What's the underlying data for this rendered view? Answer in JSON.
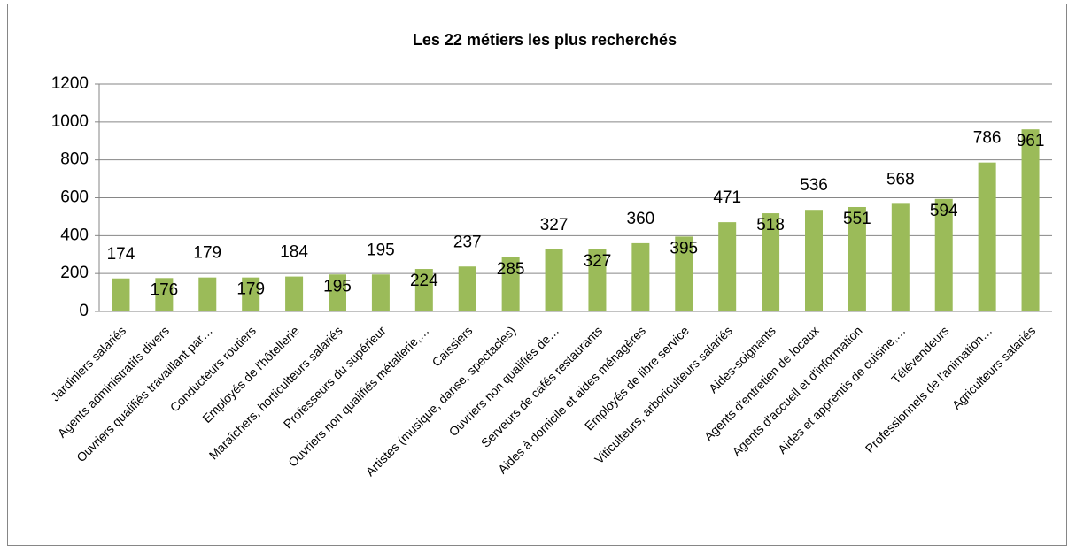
{
  "chart_data": {
    "type": "bar",
    "title": "Les 22 métiers les plus recherchés",
    "categories": [
      "Jardiniers salariés",
      "Agents administratifs divers",
      "Ouvriers qualifiés travaillant par…",
      "Conducteurs routiers",
      "Employés de l'hôtellerie",
      "Maraîchers, horticulteurs salariés",
      "Professeurs du supérieur",
      "Ouvriers non qualifiés métallerie,…",
      "Caissiers",
      "Artistes (musique, danse, spectacles)",
      "Ouvriers non qualifiés de…",
      "Serveurs de cafés restaurants",
      "Aides à domicile et aides ménagères",
      "Employés de libre service",
      "Viticulteurs, arboriculteurs salariés",
      "Aides-soignants",
      "Agents d'entretien de locaux",
      "Agents d'accueil et d'information",
      "Aides et apprentis de cuisine,…",
      "Télévendeurs",
      "Professionnels de l'animation…",
      "Agriculteurs salariés"
    ],
    "values": [
      174,
      176,
      179,
      179,
      184,
      195,
      195,
      224,
      237,
      285,
      327,
      327,
      360,
      395,
      471,
      518,
      536,
      551,
      568,
      594,
      786,
      961
    ],
    "color": "#9bbb59",
    "ylim": [
      0,
      1200
    ],
    "yticks": [
      0,
      200,
      400,
      600,
      800,
      1000,
      1200
    ],
    "grid": true
  }
}
